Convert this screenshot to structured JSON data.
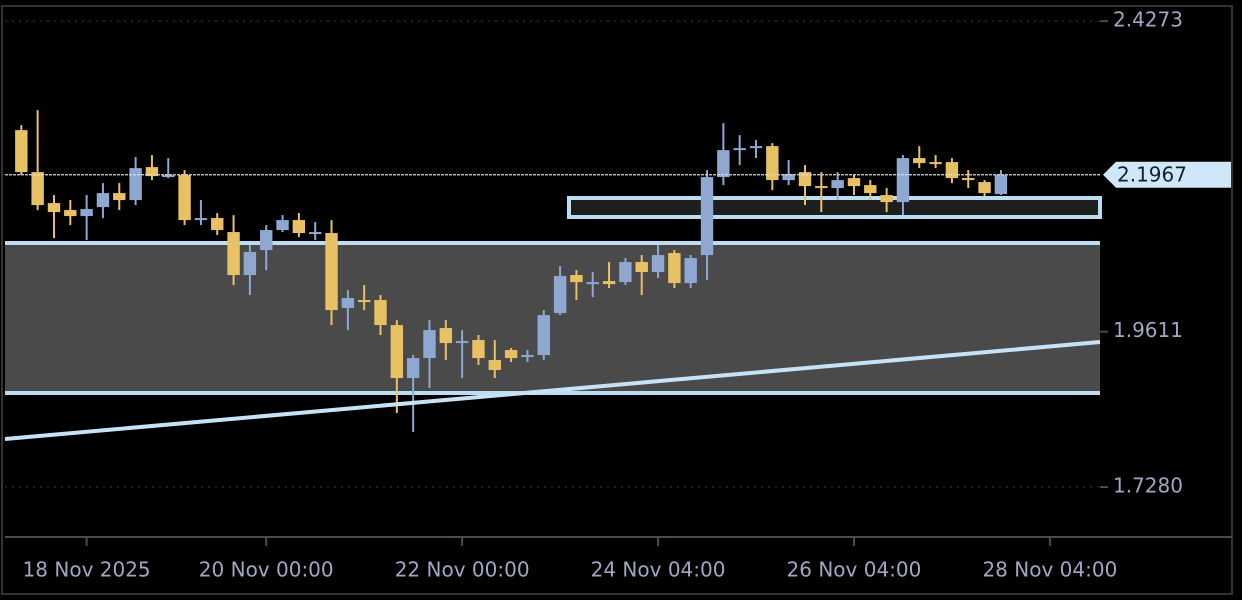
{
  "chart_data": {
    "type": "candlestick",
    "up_color": "#8ea8d2",
    "down_color": "#e9c165",
    "open": [
      2.2637,
      2.2007,
      2.1542,
      2.1437,
      2.1347,
      2.1482,
      2.1692,
      2.1587,
      2.2082,
      2.1947,
      2.1962,
      2.1287,
      2.1317,
      2.1107,
      2.0462,
      2.0837,
      2.1137,
      2.1287,
      2.1077,
      2.1092,
      1.9966,
      2.0086,
      2.0086,
      1.9711,
      1.8916,
      1.9216,
      1.9666,
      1.9441,
      1.9486,
      1.9186,
      1.9336,
      1.9231,
      1.9261,
      1.9891,
      2.0462,
      2.0326,
      2.0371,
      2.0356,
      2.0657,
      2.0507,
      2.0792,
      2.0341,
      2.0762,
      2.1932,
      2.2337,
      2.2367,
      2.2397,
      2.1887,
      2.2007,
      2.1797,
      2.1767,
      2.1917,
      2.1812,
      2.1662,
      2.1557,
      2.2217,
      2.2157,
      2.2157,
      2.1917,
      2.1857,
      2.1677
    ],
    "high": [
      2.2712,
      2.2937,
      2.1662,
      2.1587,
      2.1662,
      2.1842,
      2.1842,
      2.2232,
      2.2262,
      2.2217,
      2.2037,
      2.1587,
      2.1392,
      2.1362,
      2.0912,
      2.1212,
      2.1362,
      2.1392,
      2.1257,
      2.1287,
      2.0236,
      2.0311,
      2.0161,
      1.9786,
      1.9261,
      1.9786,
      1.9786,
      1.9636,
      1.9561,
      1.9486,
      1.9366,
      1.9336,
      1.9936,
      2.0597,
      2.0537,
      2.0507,
      2.0657,
      2.0717,
      2.0762,
      2.0912,
      2.0837,
      2.0762,
      2.2037,
      2.2742,
      2.2562,
      2.2487,
      2.2442,
      2.2187,
      2.2112,
      2.2007,
      2.2007,
      2.1962,
      2.1887,
      2.1767,
      2.2262,
      2.2397,
      2.2262,
      2.2217,
      2.2037,
      2.1887,
      2.2037
    ],
    "low": [
      2.1962,
      2.1437,
      2.1017,
      2.1212,
      2.0987,
      2.1317,
      2.1437,
      2.1512,
      2.1887,
      2.1917,
      2.1212,
      2.1212,
      2.1062,
      2.0311,
      2.0161,
      2.0537,
      2.1107,
      2.1032,
      2.0987,
      1.9711,
      1.9636,
      1.9936,
      1.9561,
      1.8391,
      1.8106,
      1.8766,
      1.9186,
      1.8916,
      1.9111,
      1.8916,
      1.9156,
      1.9156,
      1.9186,
      1.9861,
      2.0086,
      2.0131,
      2.0266,
      2.0311,
      2.0161,
      2.0417,
      2.0266,
      2.0266,
      2.0386,
      2.1812,
      2.2112,
      2.2217,
      2.1737,
      2.1812,
      2.1512,
      2.1407,
      2.1587,
      2.1662,
      2.1587,
      2.1407,
      2.1362,
      2.2067,
      2.2067,
      2.1842,
      2.1767,
      2.1647,
      2.1662
    ],
    "close": [
      2.2007,
      2.1512,
      2.1407,
      2.1347,
      2.1452,
      2.1692,
      2.1587,
      2.2067,
      2.1947,
      2.1962,
      2.1287,
      2.1317,
      2.1137,
      2.0462,
      2.0807,
      2.1137,
      2.1287,
      2.1092,
      2.1107,
      1.9936,
      2.0116,
      2.0056,
      1.9711,
      1.8916,
      1.9216,
      1.9636,
      1.9441,
      1.9471,
      1.9216,
      1.9036,
      1.9216,
      1.9261,
      1.9861,
      2.0447,
      2.0356,
      2.0356,
      2.0326,
      2.0657,
      2.0507,
      2.0762,
      2.0341,
      2.0717,
      2.1932,
      2.2337,
      2.2367,
      2.2397,
      2.1887,
      2.1977,
      2.1797,
      2.1767,
      2.1887,
      2.1797,
      2.1692,
      2.1557,
      2.2217,
      2.2142,
      2.2127,
      2.1917,
      2.1887,
      2.1692,
      2.1967
    ],
    "last_price": 2.1967,
    "ylim": [
      1.656,
      2.447
    ],
    "yticks": [
      2.4273,
      1.9611,
      {
        "value": 1.728,
        "label": "1.7280"
      }
    ],
    "xlim": [
      -1,
      66.07
    ],
    "xticks": [
      {
        "value": 4,
        "label": "18 Nov 2025"
      },
      {
        "value": 15,
        "label": "20 Nov 00:00"
      },
      {
        "value": 27,
        "label": "22 Nov 00:00"
      },
      {
        "value": 39,
        "label": "24 Nov 04:00"
      },
      {
        "value": 51,
        "label": "26 Nov 04:00"
      },
      {
        "value": 63,
        "label": "28 Nov 04:00"
      }
    ],
    "grid": true
  }
}
